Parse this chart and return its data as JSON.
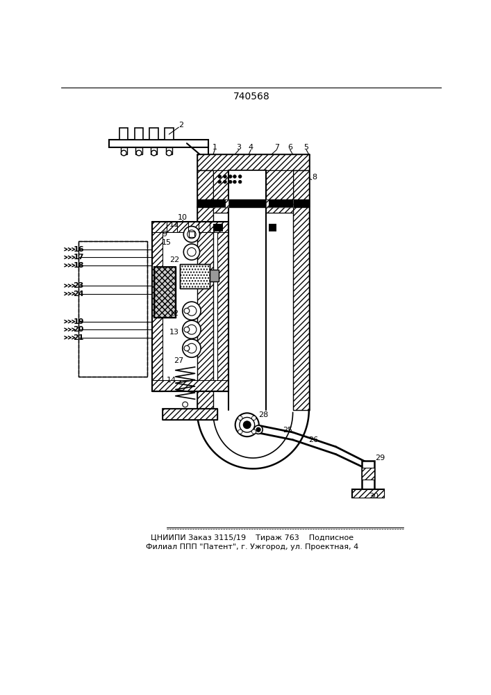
{
  "title": "740568",
  "footer_line1": "ЦНИИПИ Заказ 3115/19    Тираж 763    Подписное",
  "footer_line2": "Филиал ППП \"Патент\", г. Ужгород, ул. Проектная, 4",
  "bg_color": "#ffffff",
  "line_color": "#000000"
}
